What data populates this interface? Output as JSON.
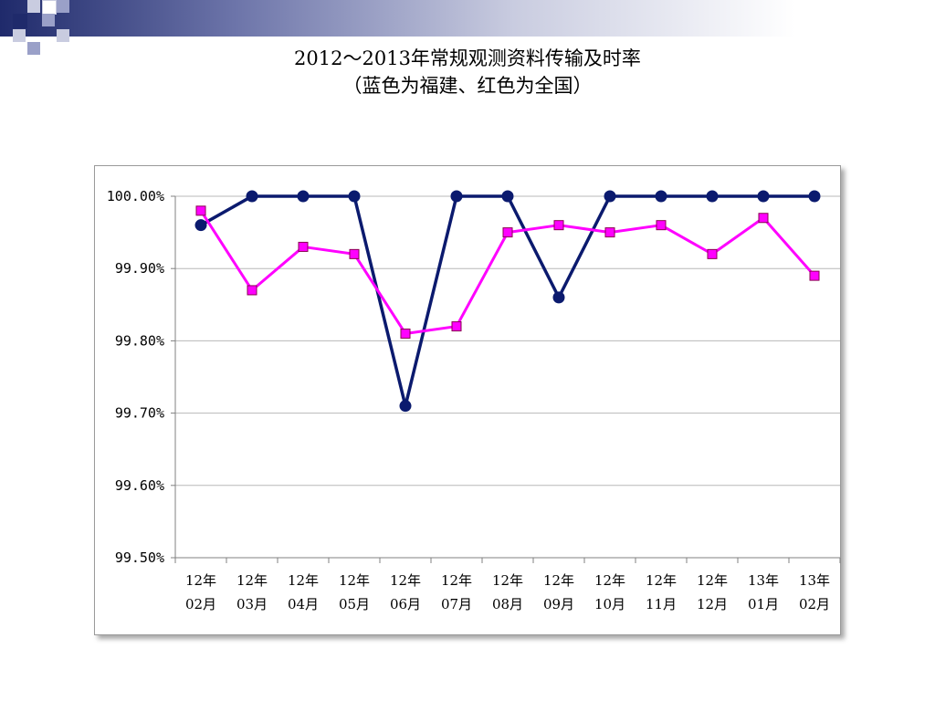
{
  "slide": {
    "title_line1": "2012～2013年常规观测资料传输及时率",
    "title_line2": "（蓝色为福建、红色为全国）"
  },
  "theme": {
    "accent_dark": "#1f2a6b",
    "accent_light": "#9aa0c8"
  },
  "chart_data": {
    "type": "line",
    "title": "",
    "xlabel": "",
    "ylabel": "",
    "ylim": [
      99.5,
      100.0
    ],
    "yticks": [
      100.0,
      99.9,
      99.8,
      99.7,
      99.6,
      99.5
    ],
    "ytick_labels": [
      "100.00%",
      "99.90%",
      "99.80%",
      "99.70%",
      "99.60%",
      "99.50%"
    ],
    "categories": [
      [
        "12年",
        "02月"
      ],
      [
        "12年",
        "03月"
      ],
      [
        "12年",
        "04月"
      ],
      [
        "12年",
        "05月"
      ],
      [
        "12年",
        "06月"
      ],
      [
        "12年",
        "07月"
      ],
      [
        "12年",
        "08月"
      ],
      [
        "12年",
        "09月"
      ],
      [
        "12年",
        "10月"
      ],
      [
        "12年",
        "11月"
      ],
      [
        "12年",
        "12月"
      ],
      [
        "13年",
        "01月"
      ],
      [
        "13年",
        "02月"
      ]
    ],
    "grid": true,
    "legend": "none",
    "series": [
      {
        "color": "#0b1a6e",
        "marker": "circle",
        "values": [
          99.96,
          100.0,
          100.0,
          100.0,
          99.71,
          100.0,
          100.0,
          99.86,
          100.0,
          100.0,
          100.0,
          100.0,
          100.0
        ]
      },
      {
        "color": "#ff00ff",
        "marker": "square",
        "values": [
          99.98,
          99.87,
          99.93,
          99.92,
          99.81,
          99.82,
          99.95,
          99.96,
          99.95,
          99.96,
          99.92,
          99.97,
          99.89
        ]
      }
    ]
  }
}
